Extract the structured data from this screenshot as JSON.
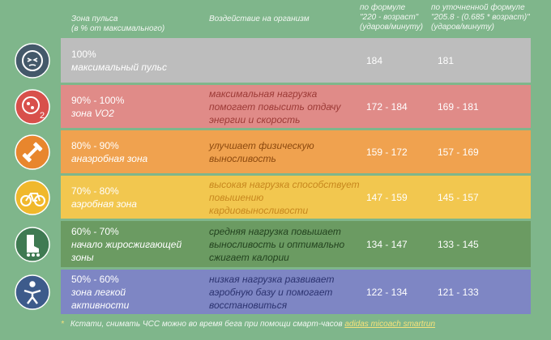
{
  "header": {
    "columns": [
      [
        "Зона пульса",
        "(в % от максимального)"
      ],
      [
        "Воздействие на организм"
      ],
      [
        "по формуле",
        "\"220 - возраст\"",
        "(ударов/минуту)"
      ],
      [
        "по уточненной формуле",
        "\"205.8 - (0.685 * возраст)\"",
        "(ударов/минуту)"
      ]
    ]
  },
  "rows": [
    {
      "zone": "100%",
      "name": "максимальный пульс",
      "effect": null,
      "formula1": "184",
      "formula2": "181"
    },
    {
      "zone": "90% - 100%",
      "name": "зона VO2",
      "effect": "максимальная нагрузка помогает повысить отдачу энергии и скорость",
      "formula1": "172 - 184",
      "formula2": "169 - 181"
    },
    {
      "zone": "80% - 90%",
      "name": "анаэробная зона",
      "effect": "улучшает физическую выносливость",
      "formula1": "159 - 172",
      "formula2": "157 - 169"
    },
    {
      "zone": "70% - 80%",
      "name": "аэробная зона",
      "effect": "высокая нагрузка способствует повышению кардиовыносливости",
      "formula1": "147 - 159",
      "formula2": "145 - 157"
    },
    {
      "zone": "60% - 70%",
      "name": "начало жиросжигающей зоны",
      "effect": "средняя нагрузка повышает выносливость и оптимально сжигает калории",
      "formula1": "134 - 147",
      "formula2": "133 - 145"
    },
    {
      "zone": "50% - 60%",
      "name": "зона легкой активности",
      "effect": "низкая нагрузка развивает аэробную базу и помогает восстановиться",
      "formula1": "122 - 134",
      "formula2": "121 - 133"
    }
  ],
  "footnote": {
    "mark": "*",
    "text": "Кстати, снимать ЧСС можно во время бега при помощи смарт-часов",
    "link": "adidas micoach smartrun"
  }
}
